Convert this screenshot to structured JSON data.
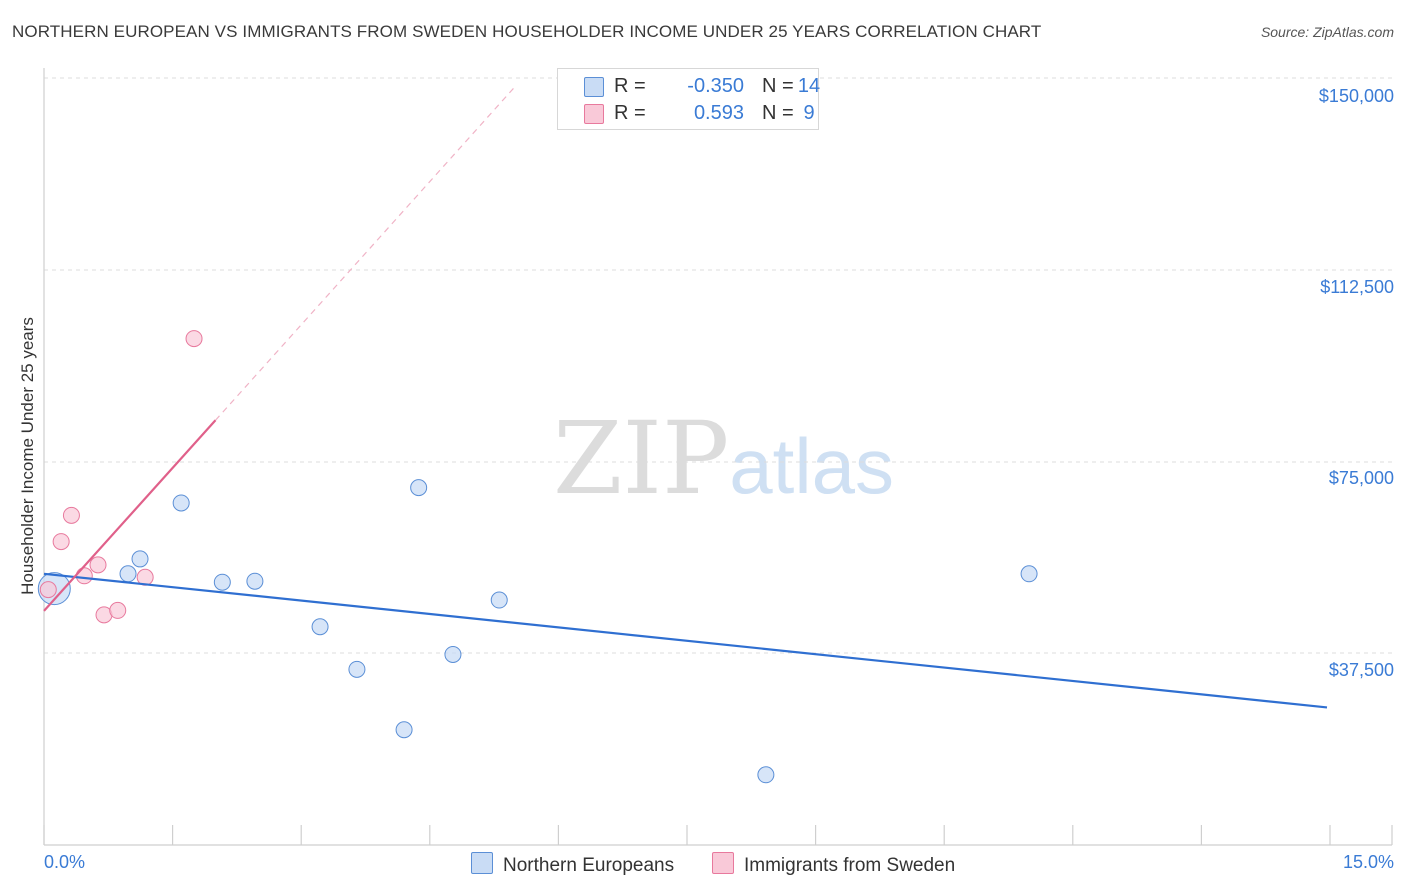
{
  "chart_data": {
    "type": "scatter",
    "title": "NORTHERN EUROPEAN VS IMMIGRANTS FROM SWEDEN HOUSEHOLDER INCOME UNDER 25 YEARS CORRELATION CHART",
    "source": "Source: ZipAtlas.com",
    "ylabel": "Householder Income Under 25 years",
    "xlabel": "",
    "xlim": [
      0,
      15
    ],
    "ylim": [
      0,
      155000
    ],
    "x_tick_labels": {
      "min": "0.0%",
      "max": "15.0%"
    },
    "y_ticks": [
      {
        "value": 150000,
        "label": "$150,000"
      },
      {
        "value": 112500,
        "label": "$112,500"
      },
      {
        "value": 75000,
        "label": "$75,000"
      },
      {
        "value": 37500,
        "label": "$37,500"
      }
    ],
    "grid": true,
    "legend_position": "top-center",
    "series": [
      {
        "name": "Northern Europeans",
        "color": "#5b8fd6",
        "fill": "#c9dcf5",
        "r_label": "R =",
        "r_value": "-0.350",
        "n_label": "N =",
        "n_value": "14",
        "points": [
          {
            "x": 0.12,
            "y": 50500,
            "big": true
          },
          {
            "x": 0.98,
            "y": 53500
          },
          {
            "x": 1.12,
            "y": 56500
          },
          {
            "x": 1.6,
            "y": 67800
          },
          {
            "x": 2.08,
            "y": 51800
          },
          {
            "x": 2.46,
            "y": 52000
          },
          {
            "x": 3.22,
            "y": 42800
          },
          {
            "x": 3.65,
            "y": 34200
          },
          {
            "x": 4.2,
            "y": 22000
          },
          {
            "x": 4.37,
            "y": 70900
          },
          {
            "x": 4.77,
            "y": 37200
          },
          {
            "x": 5.31,
            "y": 48200
          },
          {
            "x": 8.42,
            "y": 12900
          },
          {
            "x": 11.49,
            "y": 53500
          }
        ],
        "trend": {
          "x0": 0.0,
          "y0": 53500,
          "x1": 15.0,
          "y1": 26500
        }
      },
      {
        "name": "Immigrants from Sweden",
        "color": "#e8799d",
        "fill": "#f9c9d8",
        "r_label": "R =",
        "r_value": "0.593",
        "n_label": "N =",
        "n_value": "9",
        "points": [
          {
            "x": 0.05,
            "y": 50300
          },
          {
            "x": 0.2,
            "y": 60000
          },
          {
            "x": 0.32,
            "y": 65300
          },
          {
            "x": 0.47,
            "y": 53100
          },
          {
            "x": 0.63,
            "y": 55300
          },
          {
            "x": 0.7,
            "y": 45200
          },
          {
            "x": 0.86,
            "y": 46100
          },
          {
            "x": 1.18,
            "y": 52800
          },
          {
            "x": 1.75,
            "y": 101000
          }
        ],
        "trend_solid": {
          "x0": 0.0,
          "y0": 46000,
          "x1": 2.0,
          "y1": 84500
        },
        "trend_dashed": {
          "x0": 2.0,
          "y0": 84500,
          "x1": 5.5,
          "y1": 152000
        }
      }
    ]
  },
  "watermark": {
    "zip": "ZIP",
    "atlas": "atlas"
  }
}
